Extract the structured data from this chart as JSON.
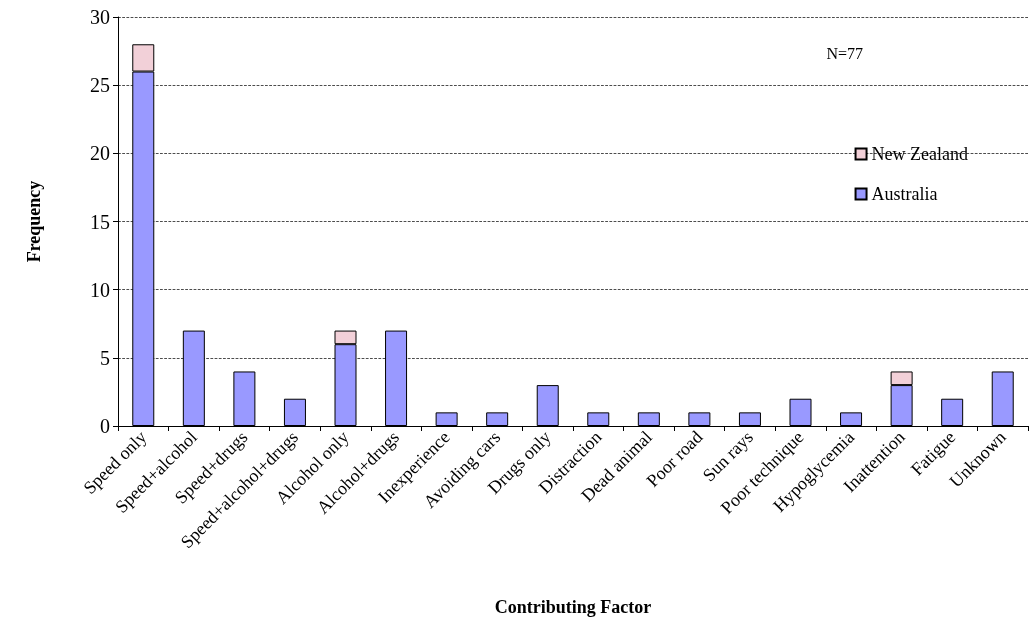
{
  "chart_data": {
    "type": "bar",
    "stacked": true,
    "xlabel": "Contributing Factor",
    "ylabel": "Frequency",
    "annotations": [
      "N=77"
    ],
    "categories": [
      "Speed only",
      "Speed+alcohol",
      "Speed+drugs",
      "Speed+alcohol+drugs",
      "Alcohol only",
      "Alcohol+drugs",
      "Inexperience",
      "Avoiding cars",
      "Drugs only",
      "Distraction",
      "Dead animal",
      "Poor road",
      "Sun rays",
      "Poor technique",
      "Hypoglycemia",
      "Inattention",
      "Fatigue",
      "Unknown"
    ],
    "series": [
      {
        "name": "Australia",
        "color": "#9999ff",
        "values": [
          26,
          7,
          4,
          2,
          6,
          7,
          1,
          1,
          3,
          1,
          1,
          1,
          1,
          2,
          1,
          3,
          2,
          4
        ]
      },
      {
        "name": "New Zealand",
        "color": "#f2d0d8",
        "values": [
          2,
          0,
          0,
          0,
          1,
          0,
          0,
          0,
          0,
          0,
          0,
          0,
          0,
          0,
          0,
          1,
          0,
          0
        ]
      }
    ],
    "ylim": [
      0,
      30
    ],
    "yticks": [
      0,
      5,
      10,
      15,
      20,
      25,
      30
    ],
    "grid": "y",
    "legend": "top right"
  }
}
